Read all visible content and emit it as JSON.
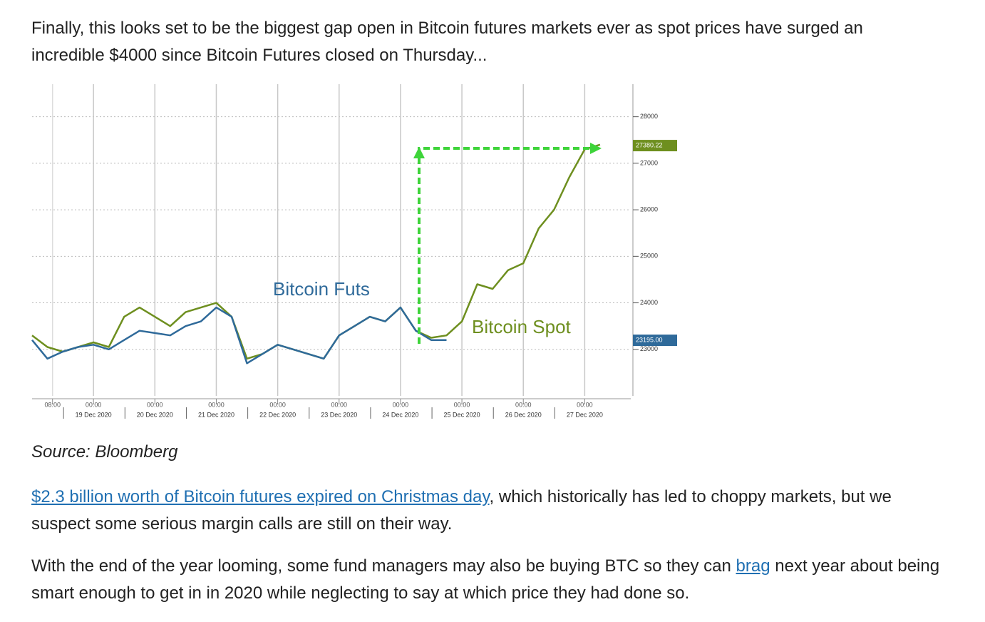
{
  "paragraphs": [
    {
      "runs": [
        {
          "text": "Finally, this looks set to be the biggest gap open in Bitcoin futures markets ever as spot prices have surged an incredible $4000 since Bitcoin Futures closed on Thursday..."
        }
      ]
    },
    {
      "runs": [
        {
          "text": "$2.3 billion worth of Bitcoin futures expired on Christmas day",
          "link": true
        },
        {
          "text": ", which historically has led to choppy markets, but we suspect some serious margin calls are still on their way."
        }
      ]
    },
    {
      "runs": [
        {
          "text": "With the end of the year looming, some fund managers may also be buying BTC so they can "
        },
        {
          "text": "brag",
          "link": true
        },
        {
          "text": " next year about being smart enough to get in in 2020 while neglecting to say at which price they had done so."
        }
      ]
    }
  ],
  "source": "Source: Bloomberg",
  "chart_data": {
    "type": "line",
    "annotations": [
      {
        "text": "Bitcoin Futs",
        "series": 0
      },
      {
        "text": "Bitcoin Spot",
        "series": 1
      }
    ],
    "x": [
      "2020-12-18T00:00",
      "2020-12-18T06:00",
      "2020-12-18T12:00",
      "2020-12-18T18:00",
      "2020-12-19T00:00",
      "2020-12-19T06:00",
      "2020-12-19T12:00",
      "2020-12-19T18:00",
      "2020-12-20T00:00",
      "2020-12-20T06:00",
      "2020-12-20T12:00",
      "2020-12-20T18:00",
      "2020-12-21T00:00",
      "2020-12-21T06:00",
      "2020-12-21T12:00",
      "2020-12-21T18:00",
      "2020-12-22T00:00",
      "2020-12-22T06:00",
      "2020-12-22T12:00",
      "2020-12-22T18:00",
      "2020-12-23T00:00",
      "2020-12-23T06:00",
      "2020-12-23T12:00",
      "2020-12-23T18:00",
      "2020-12-24T00:00",
      "2020-12-24T06:00",
      "2020-12-24T12:00",
      "2020-12-24T18:00",
      "2020-12-25T00:00",
      "2020-12-25T06:00",
      "2020-12-25T12:00",
      "2020-12-25T18:00",
      "2020-12-26T00:00",
      "2020-12-26T06:00",
      "2020-12-26T12:00",
      "2020-12-26T18:00",
      "2020-12-27T00:00",
      "2020-12-27T06:00"
    ],
    "series": [
      {
        "color": "#2f6a9a",
        "values": [
          23200,
          22800,
          22950,
          23050,
          23100,
          23000,
          23200,
          23400,
          23350,
          23300,
          23500,
          23600,
          23900,
          23700,
          22700,
          22900,
          23100,
          23000,
          22900,
          22800,
          23300,
          23500,
          23700,
          23600,
          23900,
          23400,
          23200,
          23200,
          null,
          null,
          null,
          null,
          null,
          null,
          null,
          null,
          null,
          null
        ]
      },
      {
        "color": "#6e8f1f",
        "values": [
          23300,
          23050,
          22950,
          23050,
          23150,
          23050,
          23700,
          23900,
          23700,
          23500,
          23800,
          23900,
          24000,
          23700,
          22800,
          22900,
          23100,
          23000,
          22900,
          22800,
          23300,
          23500,
          23700,
          23600,
          23900,
          23400,
          23250,
          23300,
          23600,
          24400,
          24300,
          24700,
          24850,
          25600,
          26000,
          26700,
          27300,
          27400
        ]
      }
    ],
    "last_value_labels": [
      {
        "value": 27380.22,
        "label": "27380.22",
        "series": 1
      },
      {
        "value": 23195,
        "label": "23195.00",
        "series": 0
      }
    ],
    "xlim": [
      "2020-12-18T00:00",
      "2020-12-27T18:00"
    ],
    "xticks": [
      {
        "value": "2020-12-18T08:00",
        "label": "08:00"
      },
      {
        "value": "2020-12-19T00:00",
        "label": "00:00",
        "date": "19 Dec 2020"
      },
      {
        "value": "2020-12-20T00:00",
        "label": "00:00",
        "date": "20 Dec 2020"
      },
      {
        "value": "2020-12-21T00:00",
        "label": "00:00",
        "date": "21 Dec 2020"
      },
      {
        "value": "2020-12-22T00:00",
        "label": "00:00",
        "date": "22 Dec 2020"
      },
      {
        "value": "2020-12-23T00:00",
        "label": "00:00",
        "date": "23 Dec 2020"
      },
      {
        "value": "2020-12-24T00:00",
        "label": "00:00",
        "date": "24 Dec 2020"
      },
      {
        "value": "2020-12-25T00:00",
        "label": "00:00",
        "date": "25 Dec 2020"
      },
      {
        "value": "2020-12-26T00:00",
        "label": "00:00",
        "date": "26 Dec 2020"
      },
      {
        "value": "2020-12-27T00:00",
        "label": "00:00",
        "date": "27 Dec 2020"
      }
    ],
    "ylim": [
      22000,
      28700
    ],
    "yticks": [
      23000,
      24000,
      25000,
      26000,
      27000,
      28000
    ],
    "y_axis_side": "right",
    "grid": true
  }
}
